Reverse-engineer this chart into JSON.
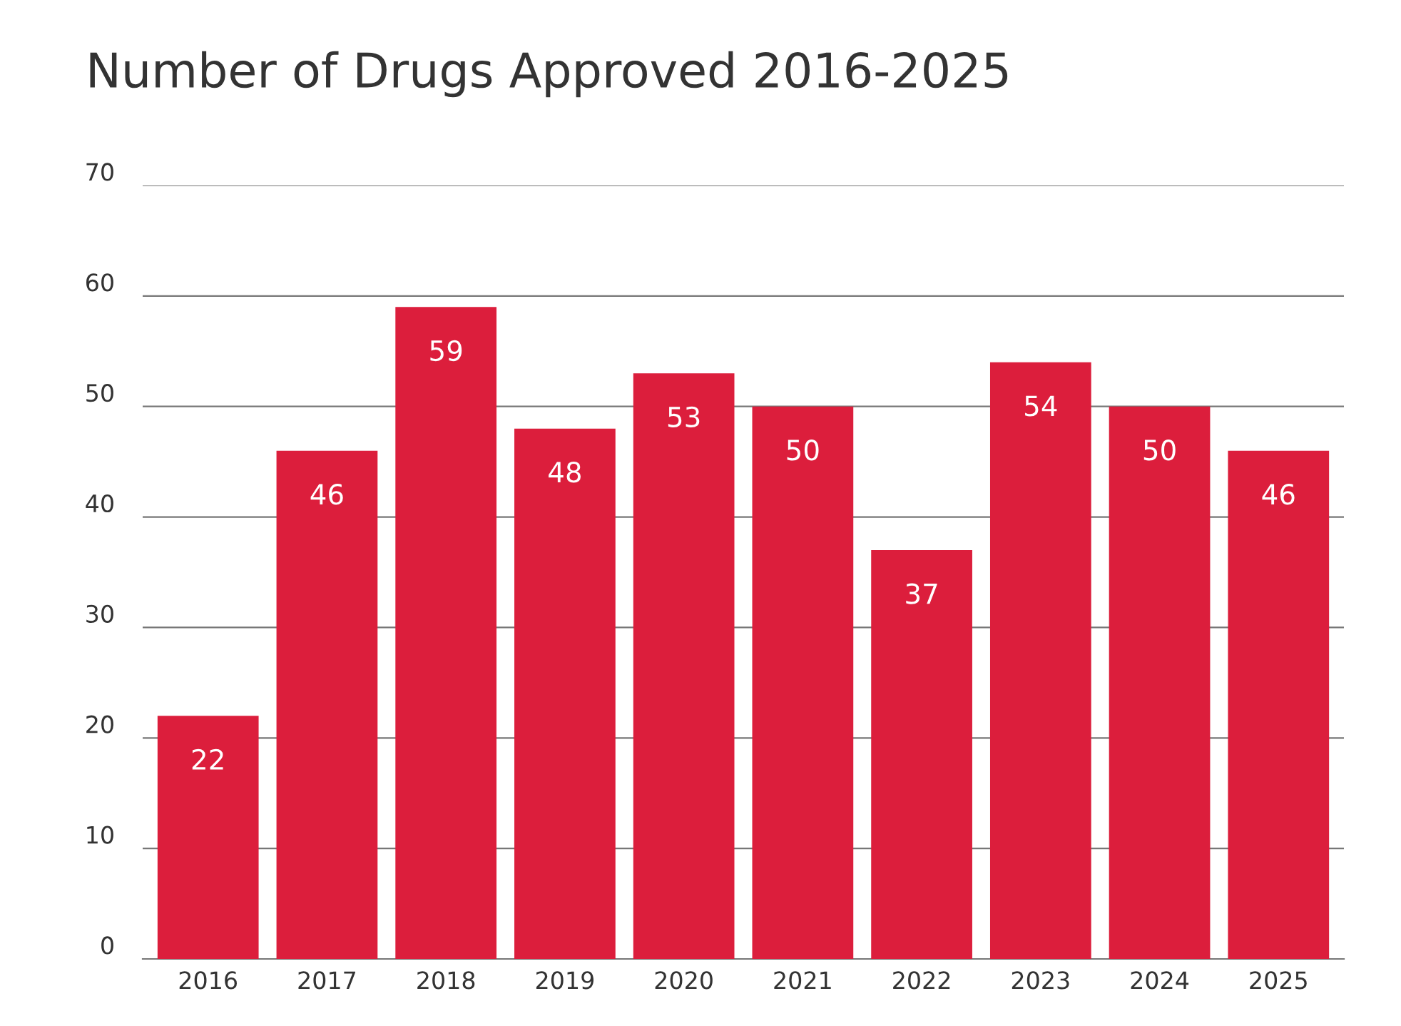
{
  "chart_data": {
    "type": "bar",
    "title": "Number of Drugs Approved 2016-2025",
    "categories": [
      "2016",
      "2017",
      "2018",
      "2019",
      "2020",
      "2021",
      "2022",
      "2023",
      "2024",
      "2025"
    ],
    "values": [
      22,
      46,
      59,
      48,
      53,
      50,
      37,
      54,
      50,
      46
    ],
    "color": "#dc1e3c",
    "ylim": [
      0,
      70
    ],
    "yticks": [
      0,
      10,
      20,
      30,
      40,
      50,
      60,
      70
    ],
    "grid": "y",
    "data_labels": true,
    "legend": false
  }
}
